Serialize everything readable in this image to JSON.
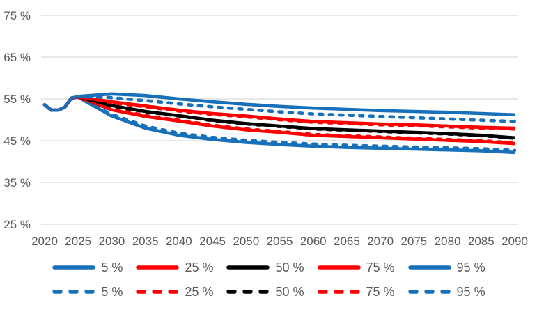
{
  "chart_data": {
    "type": "line",
    "title": "",
    "xlabel": "",
    "ylabel": "",
    "xlim": [
      2020,
      2090
    ],
    "ylim": [
      25,
      75
    ],
    "grid": "horizontal",
    "legend_position": "bottom-two-rows",
    "colors": {
      "blue": "#1771BA",
      "red": "#FF0000",
      "black": "#000000",
      "axis_text": "#595959",
      "gridline": "#D9D9D9"
    },
    "y_ticks": [
      {
        "label": "75 %",
        "value": 75
      },
      {
        "label": "65 %",
        "value": 65
      },
      {
        "label": "55 %",
        "value": 55
      },
      {
        "label": "45 %",
        "value": 45
      },
      {
        "label": "35 %",
        "value": 35
      },
      {
        "label": "25 %",
        "value": 25
      }
    ],
    "x_ticks": [
      "2020",
      "2025",
      "2030",
      "2035",
      "2040",
      "2045",
      "2050",
      "2055",
      "2060",
      "2065",
      "2070",
      "2075",
      "2080",
      "2085",
      "2090"
    ],
    "x": [
      2020,
      2021,
      2022,
      2023,
      2024,
      2025,
      2030,
      2035,
      2040,
      2045,
      2050,
      2055,
      2060,
      2065,
      2070,
      2075,
      2080,
      2085,
      2090
    ],
    "series": [
      {
        "name": "5 %",
        "dash": false,
        "color_key": "blue",
        "values": [
          53.6,
          52.3,
          52.3,
          53.0,
          55.2,
          55.4,
          50.9,
          48.0,
          46.3,
          45.3,
          44.6,
          44.1,
          43.7,
          43.4,
          43.2,
          43.0,
          42.8,
          42.6,
          42.2
        ]
      },
      {
        "name": "25 %",
        "dash": false,
        "color_key": "red",
        "values": [
          53.6,
          52.3,
          52.3,
          53.0,
          55.2,
          55.4,
          52.4,
          50.8,
          49.7,
          48.5,
          47.6,
          47.0,
          46.3,
          46.0,
          45.7,
          45.4,
          45.1,
          44.8,
          44.3
        ]
      },
      {
        "name": "50 %",
        "dash": false,
        "color_key": "black",
        "values": [
          53.6,
          52.3,
          52.3,
          53.0,
          55.2,
          55.5,
          53.4,
          52.0,
          51.0,
          49.9,
          49.1,
          48.5,
          47.9,
          47.6,
          47.3,
          47.0,
          46.7,
          46.3,
          45.7
        ]
      },
      {
        "name": "75 %",
        "dash": false,
        "color_key": "red",
        "values": [
          53.6,
          52.3,
          52.3,
          53.0,
          55.2,
          55.5,
          54.3,
          53.3,
          52.3,
          51.5,
          50.9,
          50.2,
          49.6,
          49.3,
          49.0,
          48.8,
          48.5,
          48.2,
          48.0
        ]
      },
      {
        "name": "95 %",
        "dash": false,
        "color_key": "blue",
        "values": [
          53.6,
          52.3,
          52.3,
          53.0,
          55.2,
          55.6,
          56.2,
          55.8,
          55.0,
          54.3,
          53.7,
          53.2,
          52.8,
          52.5,
          52.2,
          52.0,
          51.8,
          51.5,
          51.2
        ]
      },
      {
        "name": "5 %",
        "dash": true,
        "color_key": "blue",
        "values": [
          53.6,
          52.3,
          52.3,
          53.0,
          55.2,
          55.4,
          51.3,
          48.5,
          46.8,
          45.8,
          45.1,
          44.6,
          44.2,
          43.9,
          43.7,
          43.5,
          43.3,
          43.1,
          42.7
        ]
      },
      {
        "name": "25 %",
        "dash": true,
        "color_key": "red",
        "values": [
          53.6,
          52.3,
          52.3,
          53.0,
          55.2,
          55.4,
          52.6,
          51.0,
          49.9,
          48.7,
          47.8,
          47.2,
          46.5,
          46.2,
          45.9,
          45.6,
          45.3,
          45.0,
          44.5
        ]
      },
      {
        "name": "50 %",
        "dash": true,
        "color_key": "black",
        "values": [
          53.6,
          52.3,
          52.3,
          53.0,
          55.2,
          55.5,
          53.3,
          51.9,
          50.9,
          49.8,
          49.0,
          48.4,
          47.8,
          47.5,
          47.2,
          46.9,
          46.6,
          46.2,
          45.6
        ]
      },
      {
        "name": "75 %",
        "dash": true,
        "color_key": "red",
        "values": [
          53.6,
          52.3,
          52.3,
          53.0,
          55.2,
          55.5,
          54.1,
          53.1,
          52.1,
          51.3,
          50.7,
          50.0,
          49.4,
          49.1,
          48.8,
          48.6,
          48.3,
          48.0,
          47.8
        ]
      },
      {
        "name": "95 %",
        "dash": true,
        "color_key": "blue",
        "values": [
          53.6,
          52.3,
          52.3,
          53.0,
          55.2,
          55.6,
          55.3,
          54.6,
          53.8,
          53.1,
          52.5,
          51.9,
          51.4,
          51.1,
          50.8,
          50.5,
          50.2,
          49.9,
          49.6
        ]
      }
    ]
  }
}
